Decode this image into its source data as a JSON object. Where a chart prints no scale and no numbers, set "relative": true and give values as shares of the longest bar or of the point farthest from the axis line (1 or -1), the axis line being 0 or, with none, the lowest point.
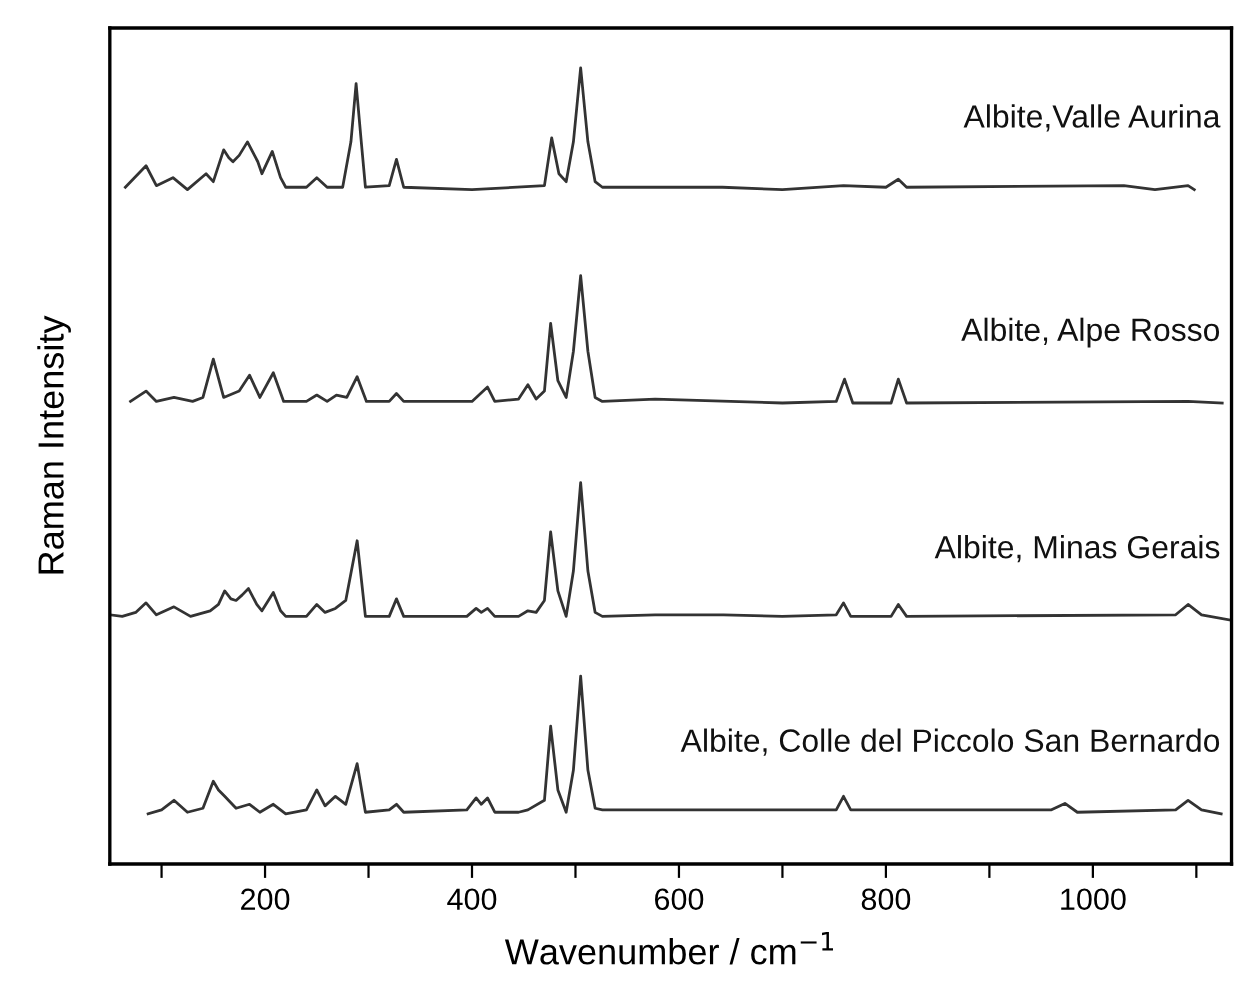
{
  "chart_data": {
    "type": "line",
    "relative": true,
    "xlabel": "Wavenumber / cm$^{−1}$",
    "ylabel": "Raman Intensity",
    "xlim": [
      50,
      1134
    ],
    "xticks": [
      {
        "value": 100,
        "label": null
      },
      200,
      {
        "value": 300,
        "label": null
      },
      400,
      {
        "value": 500,
        "label": null
      },
      600,
      {
        "value": 700,
        "label": null
      },
      800,
      {
        "value": 900,
        "label": null
      },
      1000,
      {
        "value": 1100,
        "label": null
      }
    ],
    "grid": false,
    "legend": false,
    "marker": "none",
    "line_style": "solid",
    "series": [
      {
        "name": "Albite,Valle Aurina",
        "color": "#333333",
        "x": [
          65,
          85,
          95,
          111,
          125,
          143,
          150,
          160,
          165,
          169,
          175,
          183,
          193,
          197,
          207,
          215,
          220,
          240,
          250,
          260,
          275,
          283,
          288,
          293,
          297,
          320,
          327,
          334,
          400,
          470,
          477,
          484,
          491,
          498,
          505,
          512,
          519,
          526,
          577,
          642,
          700,
          759,
          800,
          812,
          820,
          1030,
          1060,
          1092,
          1098
        ],
        "values": [
          0.85,
          0.877,
          0.852,
          0.862,
          0.847,
          0.867,
          0.857,
          0.897,
          0.887,
          0.882,
          0.89,
          0.907,
          0.882,
          0.867,
          0.895,
          0.862,
          0.85,
          0.85,
          0.862,
          0.85,
          0.85,
          0.907,
          0.98,
          0.907,
          0.85,
          0.852,
          0.885,
          0.85,
          0.847,
          0.852,
          0.912,
          0.867,
          0.857,
          0.907,
          1.0,
          0.907,
          0.857,
          0.85,
          0.85,
          0.85,
          0.847,
          0.852,
          0.85,
          0.86,
          0.85,
          0.852,
          0.847,
          0.852,
          0.847
        ]
      },
      {
        "name": "Albite, Alpe Rosso",
        "color": "#333333",
        "x": [
          70,
          85,
          95,
          112,
          130,
          140,
          150,
          160,
          175,
          185,
          195,
          208,
          218,
          240,
          250,
          260,
          269,
          279,
          289,
          298,
          320,
          327,
          334,
          400,
          415,
          422,
          445,
          454,
          462,
          470,
          476,
          483,
          491,
          498,
          505,
          512,
          519,
          526,
          577,
          700,
          752,
          760,
          768,
          805,
          812,
          820,
          1092,
          1125
        ],
        "values": [
          0.581,
          0.594,
          0.581,
          0.586,
          0.581,
          0.586,
          0.634,
          0.586,
          0.594,
          0.614,
          0.586,
          0.617,
          0.581,
          0.581,
          0.589,
          0.581,
          0.589,
          0.586,
          0.612,
          0.581,
          0.581,
          0.591,
          0.581,
          0.581,
          0.599,
          0.581,
          0.584,
          0.602,
          0.584,
          0.594,
          0.679,
          0.607,
          0.586,
          0.644,
          0.739,
          0.644,
          0.586,
          0.581,
          0.584,
          0.579,
          0.581,
          0.609,
          0.579,
          0.579,
          0.609,
          0.579,
          0.581,
          0.579
        ]
      },
      {
        "name": "Albite, Minas Gerais",
        "color": "#333333",
        "x": [
          50,
          62,
          75,
          85,
          95,
          112,
          128,
          147,
          155,
          161,
          167,
          172,
          178,
          184,
          192,
          197,
          208,
          215,
          220,
          240,
          250,
          258,
          268,
          278,
          289,
          297,
          320,
          327,
          334,
          395,
          404,
          409,
          415,
          422,
          445,
          454,
          462,
          470,
          476,
          483,
          491,
          498,
          505,
          512,
          519,
          526,
          577,
          643,
          700,
          752,
          759,
          766,
          805,
          812,
          820,
          1080,
          1092,
          1105,
          1134
        ],
        "values": [
          0.313,
          0.311,
          0.316,
          0.328,
          0.313,
          0.323,
          0.311,
          0.318,
          0.326,
          0.343,
          0.333,
          0.331,
          0.338,
          0.346,
          0.326,
          0.318,
          0.341,
          0.318,
          0.311,
          0.311,
          0.326,
          0.316,
          0.321,
          0.331,
          0.406,
          0.311,
          0.311,
          0.333,
          0.311,
          0.311,
          0.321,
          0.316,
          0.321,
          0.311,
          0.311,
          0.318,
          0.316,
          0.331,
          0.417,
          0.343,
          0.311,
          0.368,
          0.479,
          0.368,
          0.316,
          0.311,
          0.313,
          0.313,
          0.311,
          0.313,
          0.328,
          0.311,
          0.311,
          0.326,
          0.311,
          0.313,
          0.326,
          0.313,
          0.306
        ]
      },
      {
        "name": "Albite, Colle del Piccolo San Bernardo",
        "color": "#333333",
        "x": [
          87,
          100,
          112,
          125,
          140,
          150,
          155,
          161,
          172,
          185,
          195,
          208,
          220,
          240,
          250,
          258,
          268,
          278,
          289,
          297,
          320,
          327,
          334,
          395,
          404,
          409,
          415,
          422,
          445,
          454,
          470,
          476,
          483,
          491,
          498,
          505,
          512,
          519,
          526,
          700,
          752,
          759,
          766,
          960,
          973,
          985,
          1080,
          1092,
          1105,
          1124
        ],
        "values": [
          0.063,
          0.068,
          0.08,
          0.065,
          0.07,
          0.104,
          0.093,
          0.085,
          0.07,
          0.075,
          0.065,
          0.075,
          0.063,
          0.068,
          0.093,
          0.073,
          0.085,
          0.075,
          0.126,
          0.065,
          0.068,
          0.075,
          0.065,
          0.068,
          0.083,
          0.075,
          0.083,
          0.065,
          0.065,
          0.068,
          0.08,
          0.173,
          0.093,
          0.065,
          0.118,
          0.236,
          0.118,
          0.07,
          0.068,
          0.068,
          0.068,
          0.085,
          0.068,
          0.068,
          0.076,
          0.065,
          0.068,
          0.08,
          0.068,
          0.063
        ]
      }
    ]
  }
}
